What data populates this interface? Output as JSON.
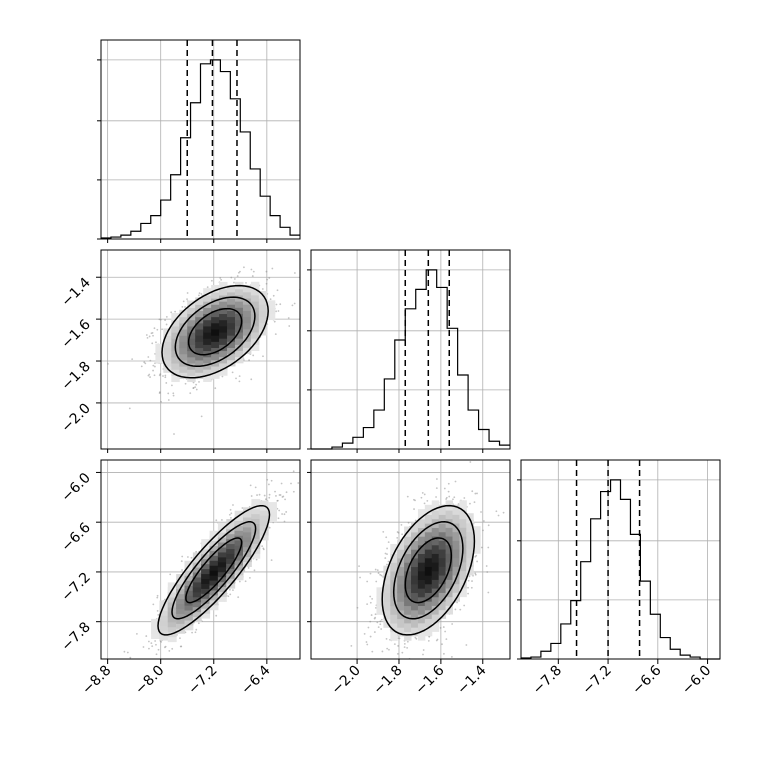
{
  "chart_data": {
    "type": "corner",
    "grid": true,
    "xlabel": "",
    "ylabel": "",
    "parameters": [
      {
        "ticks": [
          -8.8,
          -8.0,
          -7.2,
          -6.4
        ],
        "tick_labels": [
          "−8.8",
          "−8.0",
          "−7.2",
          "−6.4"
        ],
        "range": [
          -8.9,
          -5.9
        ]
      },
      {
        "ticks": [
          -2.0,
          -1.8,
          -1.6,
          -1.4
        ],
        "tick_labels": [
          "−2.0",
          "−1.8",
          "−1.6",
          "−1.4"
        ],
        "range": [
          -2.22,
          -1.27
        ]
      },
      {
        "ticks": [
          -7.8,
          -7.2,
          -6.6,
          -6.0
        ],
        "tick_labels": [
          "−7.8",
          "−7.2",
          "−6.6",
          "−6.0"
        ],
        "range": [
          -8.25,
          -5.85
        ]
      }
    ],
    "histograms": [
      {
        "quantiles": [
          -7.6,
          -7.22,
          -6.85
        ],
        "bin_edges": [
          -8.9,
          -8.75,
          -8.6,
          -8.45,
          -8.3,
          -8.15,
          -8.0,
          -7.85,
          -7.7,
          -7.55,
          -7.4,
          -7.25,
          -7.1,
          -6.95,
          -6.8,
          -6.65,
          -6.5,
          -6.35,
          -6.2,
          -6.05,
          -5.9
        ],
        "counts": [
          0.005,
          0.01,
          0.02,
          0.04,
          0.08,
          0.12,
          0.2,
          0.33,
          0.52,
          0.7,
          0.9,
          0.92,
          0.86,
          0.72,
          0.55,
          0.36,
          0.22,
          0.12,
          0.06,
          0.02
        ]
      },
      {
        "quantiles": [
          -1.77,
          -1.66,
          -1.56
        ],
        "bin_edges": [
          -2.22,
          -2.17,
          -2.12,
          -2.07,
          -2.02,
          -1.97,
          -1.92,
          -1.87,
          -1.82,
          -1.77,
          -1.72,
          -1.67,
          -1.62,
          -1.57,
          -1.52,
          -1.47,
          -1.42,
          -1.37,
          -1.32,
          -1.27
        ],
        "counts": [
          0.0,
          0.0,
          0.01,
          0.03,
          0.06,
          0.11,
          0.2,
          0.36,
          0.56,
          0.72,
          0.82,
          0.92,
          0.83,
          0.62,
          0.38,
          0.2,
          0.1,
          0.04,
          0.02
        ]
      },
      {
        "quantiles": [
          -7.58,
          -7.2,
          -6.82
        ],
        "bin_edges": [
          -8.25,
          -8.13,
          -8.01,
          -7.89,
          -7.77,
          -7.65,
          -7.53,
          -7.41,
          -7.29,
          -7.17,
          -7.05,
          -6.93,
          -6.81,
          -6.69,
          -6.57,
          -6.45,
          -6.33,
          -6.21,
          -6.09,
          -5.97,
          -5.85
        ],
        "counts": [
          0.005,
          0.01,
          0.04,
          0.08,
          0.18,
          0.3,
          0.5,
          0.72,
          0.86,
          0.92,
          0.82,
          0.64,
          0.4,
          0.23,
          0.11,
          0.05,
          0.02,
          0.01,
          0.0,
          0.0
        ]
      }
    ],
    "joint_2d": [
      {
        "row": 1,
        "col": 0,
        "x_param": 0,
        "y_param": 1,
        "center": [
          -7.18,
          -1.66
        ],
        "sigma": [
          0.4,
          0.11
        ],
        "correlation": 0.45
      },
      {
        "row": 2,
        "col": 0,
        "x_param": 0,
        "y_param": 2,
        "center": [
          -7.2,
          -7.18
        ],
        "sigma": [
          0.42,
          0.39
        ],
        "correlation": 0.86
      },
      {
        "row": 2,
        "col": 1,
        "x_param": 1,
        "y_param": 2,
        "center": [
          -1.66,
          -7.18
        ],
        "sigma": [
          0.11,
          0.39
        ],
        "correlation": 0.45
      }
    ],
    "contour_levels_sigma": [
      0.5,
      1.0,
      1.5,
      2.0
    ]
  }
}
